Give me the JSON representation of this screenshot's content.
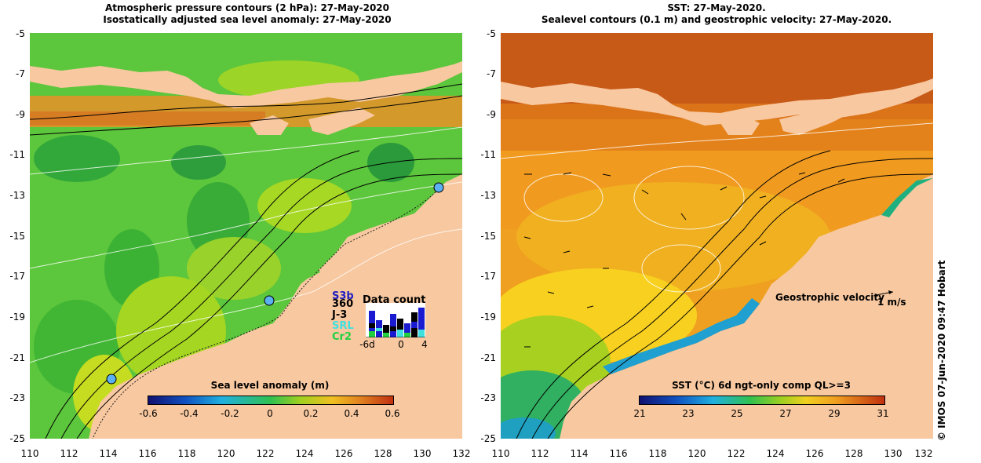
{
  "left_panel": {
    "title_line1": "Atmospheric pressure contours (2 hPa): 27-May-2020",
    "title_line2": "Isostatically adjusted sea level anomaly: 27-May-2020",
    "colorbar_label": "Sea level anomaly (m)",
    "colorbar_ticks": [
      "-0.6",
      "-0.4",
      "-0.2",
      "0",
      "0.2",
      "0.4",
      "0.6"
    ],
    "data_count": {
      "label": "Data count",
      "satellites": [
        {
          "name": "S3b",
          "color": "#2020c0"
        },
        {
          "name": "360",
          "color": "#000000"
        },
        {
          "name": "J-3",
          "color": "#000000"
        },
        {
          "name": "SRL",
          "color": "#40e0e0"
        },
        {
          "name": "Cr2",
          "color": "#20d040"
        }
      ],
      "x_ticks": [
        "-6d",
        "0",
        "4"
      ]
    }
  },
  "right_panel": {
    "title_line1": "SST: 27-May-2020.",
    "title_line2": "Sealevel contours (0.1 m) and geostrophic velocity: 27-May-2020.",
    "colorbar_label": "SST (°C) 6d ngt-only comp QL>=3",
    "colorbar_ticks": [
      "21",
      "23",
      "25",
      "27",
      "29",
      "31"
    ],
    "velocity_legend": "Geostrophic velocity",
    "velocity_unit": "1 m/s"
  },
  "axes": {
    "y_ticks": [
      "-5",
      "-7",
      "-9",
      "-11",
      "-13",
      "-15",
      "-17",
      "-19",
      "-21",
      "-23",
      "-25"
    ],
    "x_ticks": [
      "110",
      "112",
      "114",
      "116",
      "118",
      "120",
      "122",
      "124",
      "126",
      "128",
      "130",
      "132"
    ]
  },
  "credit": "© IMOS 07-Jun-2020 09:47 Hobart",
  "colors": {
    "land": "#f8c8a0",
    "ocean_left": "#5cc63c",
    "ocean_right": "#f0a020"
  }
}
